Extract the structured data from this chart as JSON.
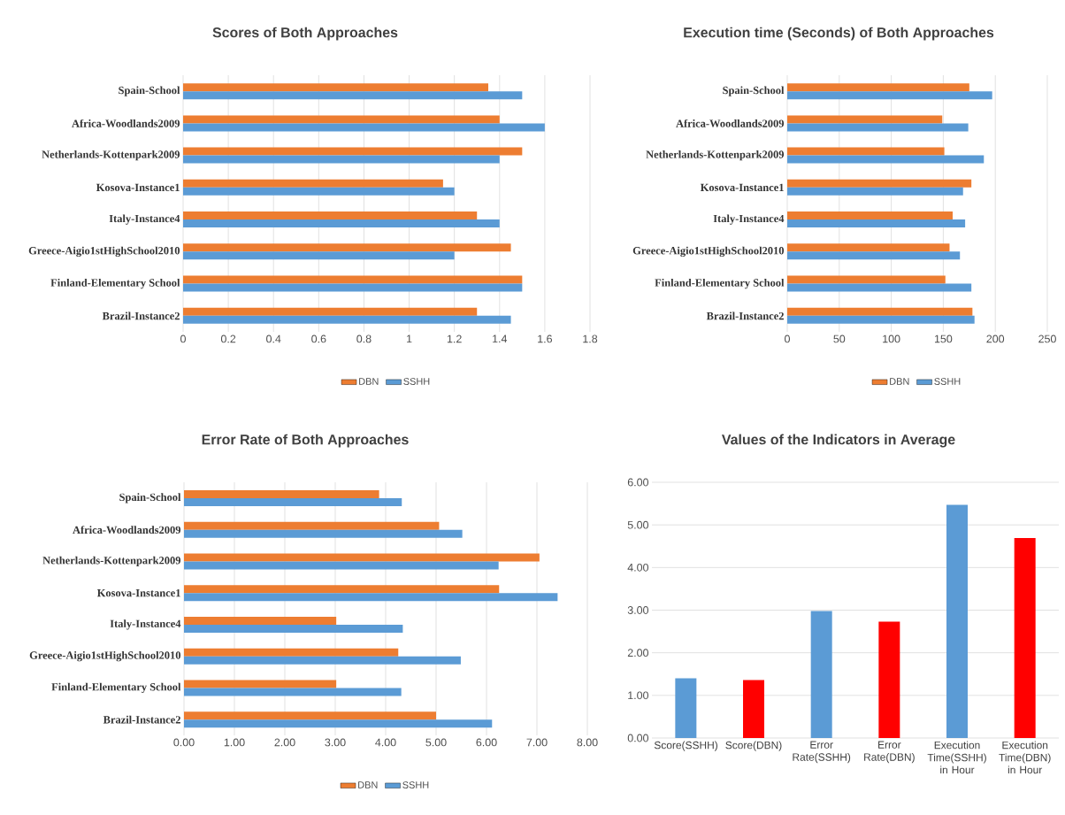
{
  "chart_data": [
    {
      "type": "bar",
      "orientation": "horizontal",
      "title": "Scores of Both Approaches",
      "categories": [
        "Spain-School",
        "Africa-Woodlands2009",
        "Netherlands-Kottenpark2009",
        "Kosova-Instance1",
        "Italy-Instance4",
        "Greece-Aigio1stHighSchool2010",
        "Finland-Elementary School",
        "Brazil-Instance2"
      ],
      "series": [
        {
          "name": "DBN",
          "color": "#ed7d31",
          "values": [
            1.35,
            1.4,
            1.5,
            1.15,
            1.3,
            1.45,
            1.5,
            1.3
          ]
        },
        {
          "name": "SSHH",
          "color": "#5b9bd5",
          "values": [
            1.5,
            1.6,
            1.4,
            1.2,
            1.4,
            1.2,
            1.5,
            1.45
          ]
        }
      ],
      "xlim": [
        0,
        1.8
      ],
      "xticks": [
        0,
        0.2,
        0.4,
        0.6,
        0.8,
        1,
        1.2,
        1.4,
        1.6,
        1.8
      ],
      "grid": "x",
      "legend": "bottom"
    },
    {
      "type": "bar",
      "orientation": "horizontal",
      "title": "Execution time (Seconds) of Both Approaches",
      "categories": [
        "Spain-School",
        "Africa-Woodlands2009",
        "Netherlands-Kottenpark2009",
        "Kosova-Instance1",
        "Italy-Instance4",
        "Greece-Aigio1stHighSchool2010",
        "Finland-Elementary School",
        "Brazil-Instance2"
      ],
      "series": [
        {
          "name": "DBN",
          "color": "#ed7d31",
          "values": [
            175,
            149,
            151,
            177,
            159,
            156,
            152,
            178
          ]
        },
        {
          "name": "SSHH",
          "color": "#5b9bd5",
          "values": [
            197,
            174,
            189,
            169,
            171,
            166,
            177,
            180
          ]
        }
      ],
      "xlim": [
        0,
        250
      ],
      "xticks": [
        0,
        50,
        100,
        150,
        200,
        250
      ],
      "grid": "x",
      "legend": "bottom"
    },
    {
      "type": "bar",
      "orientation": "horizontal",
      "title": "Error Rate of Both Approaches",
      "categories": [
        "Spain-School",
        "Africa-Woodlands2009",
        "Netherlands-Kottenpark2009",
        "Kosova-Instance1",
        "Italy-Instance4",
        "Greece-Aigio1stHighSchool2010",
        "Finland-Elementary School",
        "Brazil-Instance2"
      ],
      "series": [
        {
          "name": "DBN",
          "color": "#ed7d31",
          "values": [
            3.87,
            5.06,
            7.05,
            6.25,
            3.02,
            4.25,
            3.02,
            5.0
          ]
        },
        {
          "name": "SSHH",
          "color": "#5b9bd5",
          "values": [
            4.32,
            5.52,
            6.24,
            7.41,
            4.34,
            5.49,
            4.31,
            6.11
          ]
        }
      ],
      "xlim": [
        0,
        8
      ],
      "xticks": [
        {
          "value": 0,
          "label": "0.00"
        },
        {
          "value": 1,
          "label": "1.00"
        },
        {
          "value": 2,
          "label": "2.00"
        },
        {
          "value": 3,
          "label": "3.00"
        },
        {
          "value": 4,
          "label": "4.00"
        },
        {
          "value": 5,
          "label": "5.00"
        },
        {
          "value": 6,
          "label": "6.00"
        },
        {
          "value": 7,
          "label": "7.00"
        },
        {
          "value": 8,
          "label": "8.00"
        }
      ],
      "grid": "x",
      "legend": "bottom"
    },
    {
      "type": "bar",
      "title": "Values of the Indicators in Average",
      "categories": [
        "Score(SSHH)",
        "Score(DBN)",
        "Error Rate(SSHH)",
        "Error Rate(DBN)",
        "Execution Time(SSHH) in Hour",
        "Execution Time(DBN) in Hour"
      ],
      "values": [
        1.4,
        1.36,
        2.98,
        2.73,
        5.47,
        4.69
      ],
      "colors": [
        "#5b9bd5",
        "#ff0000",
        "#5b9bd5",
        "#ff0000",
        "#5b9bd5",
        "#ff0000"
      ],
      "ylim": [
        0,
        6
      ],
      "yticks": [
        {
          "value": 0,
          "label": "0.00"
        },
        {
          "value": 1,
          "label": "1.00"
        },
        {
          "value": 2,
          "label": "2.00"
        },
        {
          "value": 3,
          "label": "3.00"
        },
        {
          "value": 4,
          "label": "4.00"
        },
        {
          "value": 5,
          "label": "5.00"
        },
        {
          "value": 6,
          "label": "6.00"
        }
      ],
      "grid": "y"
    }
  ]
}
